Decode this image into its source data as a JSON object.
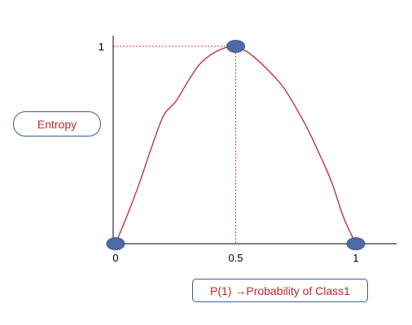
{
  "chart_data": {
    "type": "line",
    "title": "",
    "xlabel": "P(1) →Probability of Class1",
    "ylabel": "Entropy",
    "xlim": [
      0,
      1.17
    ],
    "ylim": [
      0,
      1.05
    ],
    "x_ticks": [
      "0",
      "0.5",
      "1"
    ],
    "y_ticks": [
      "1"
    ],
    "grid": false,
    "series": [
      {
        "name": "Entropy",
        "color": "#c0262b",
        "x": [
          0,
          0.05,
          0.1,
          0.15,
          0.2,
          0.25,
          0.3,
          0.35,
          0.4,
          0.45,
          0.5,
          0.55,
          0.6,
          0.65,
          0.7,
          0.75,
          0.8,
          0.85,
          0.9,
          0.95,
          1.0
        ],
        "y": [
          0,
          0.15,
          0.31,
          0.49,
          0.65,
          0.72,
          0.82,
          0.91,
          0.96,
          0.99,
          1.0,
          0.97,
          0.92,
          0.86,
          0.79,
          0.69,
          0.58,
          0.45,
          0.31,
          0.13,
          0
        ]
      }
    ],
    "highlight_points": [
      {
        "x": 0,
        "y": 0
      },
      {
        "x": 0.5,
        "y": 1
      },
      {
        "x": 1,
        "y": 0
      }
    ],
    "marker_color": "#4f6aa8",
    "axis_color": "#000000",
    "guide_color": "#e0393e"
  }
}
